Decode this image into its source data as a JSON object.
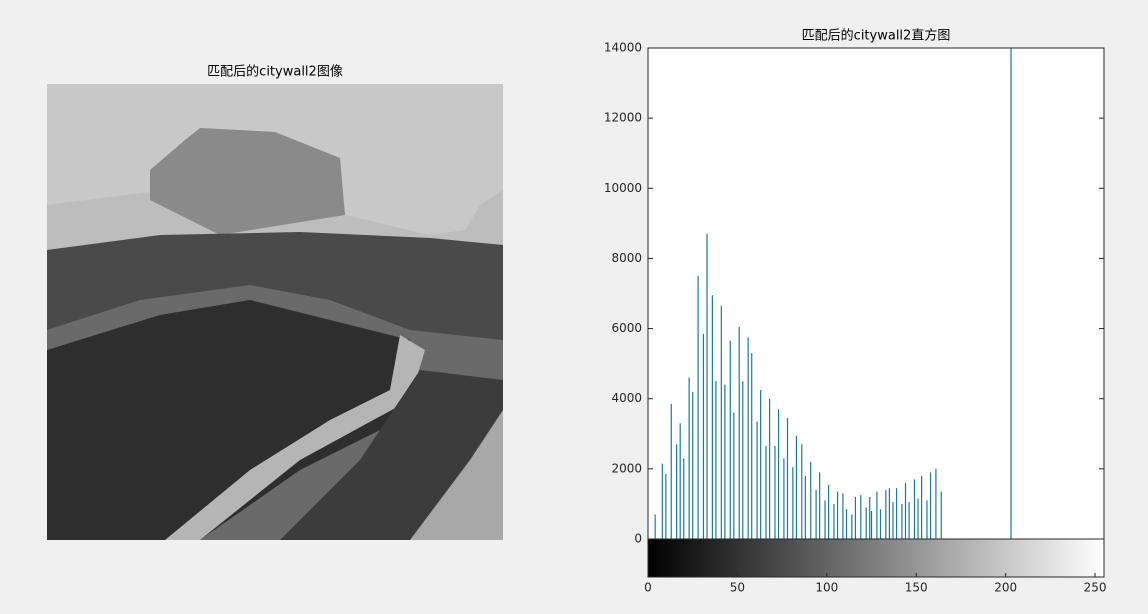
{
  "image_title": "匹配后的citywall2图像",
  "chart_data": {
    "type": "stem",
    "title": "匹配后的citywall2直方图",
    "color": "#1a7a9a",
    "x": [
      4,
      8,
      10,
      13,
      16,
      18,
      20,
      23,
      25,
      28,
      31,
      33,
      36,
      38,
      41,
      43,
      46,
      48,
      51,
      53,
      56,
      58,
      61,
      63,
      66,
      68,
      71,
      73,
      76,
      78,
      81,
      83,
      86,
      88,
      91,
      94,
      96,
      99,
      101,
      104,
      106,
      109,
      111,
      114,
      116,
      119,
      122,
      124,
      125,
      128,
      130,
      133,
      135,
      137,
      139,
      142,
      144,
      146,
      149,
      151,
      153,
      156,
      158,
      161,
      164,
      203
    ],
    "values": [
      700,
      2150,
      1850,
      3850,
      2700,
      3300,
      2300,
      4600,
      4200,
      7500,
      5850,
      8700,
      6950,
      4500,
      6650,
      4400,
      5650,
      3600,
      6050,
      4500,
      5750,
      5300,
      3350,
      4250,
      2650,
      4000,
      2650,
      3700,
      2300,
      3450,
      2050,
      2950,
      2700,
      1800,
      2200,
      1400,
      1900,
      1100,
      1550,
      1000,
      1350,
      1300,
      850,
      700,
      1200,
      1250,
      900,
      1200,
      800,
      1350,
      850,
      1400,
      1450,
      1050,
      1450,
      1000,
      1600,
      1050,
      1700,
      1150,
      1800,
      1100,
      1900,
      2000,
      1350,
      14000
    ],
    "xlim": [
      0,
      255
    ],
    "ylim": [
      0,
      14000
    ],
    "xticks": [
      0,
      50,
      100,
      150,
      200,
      250
    ],
    "yticks": [
      0,
      2000,
      4000,
      6000,
      8000,
      10000,
      12000,
      14000
    ],
    "colorbar": true
  }
}
